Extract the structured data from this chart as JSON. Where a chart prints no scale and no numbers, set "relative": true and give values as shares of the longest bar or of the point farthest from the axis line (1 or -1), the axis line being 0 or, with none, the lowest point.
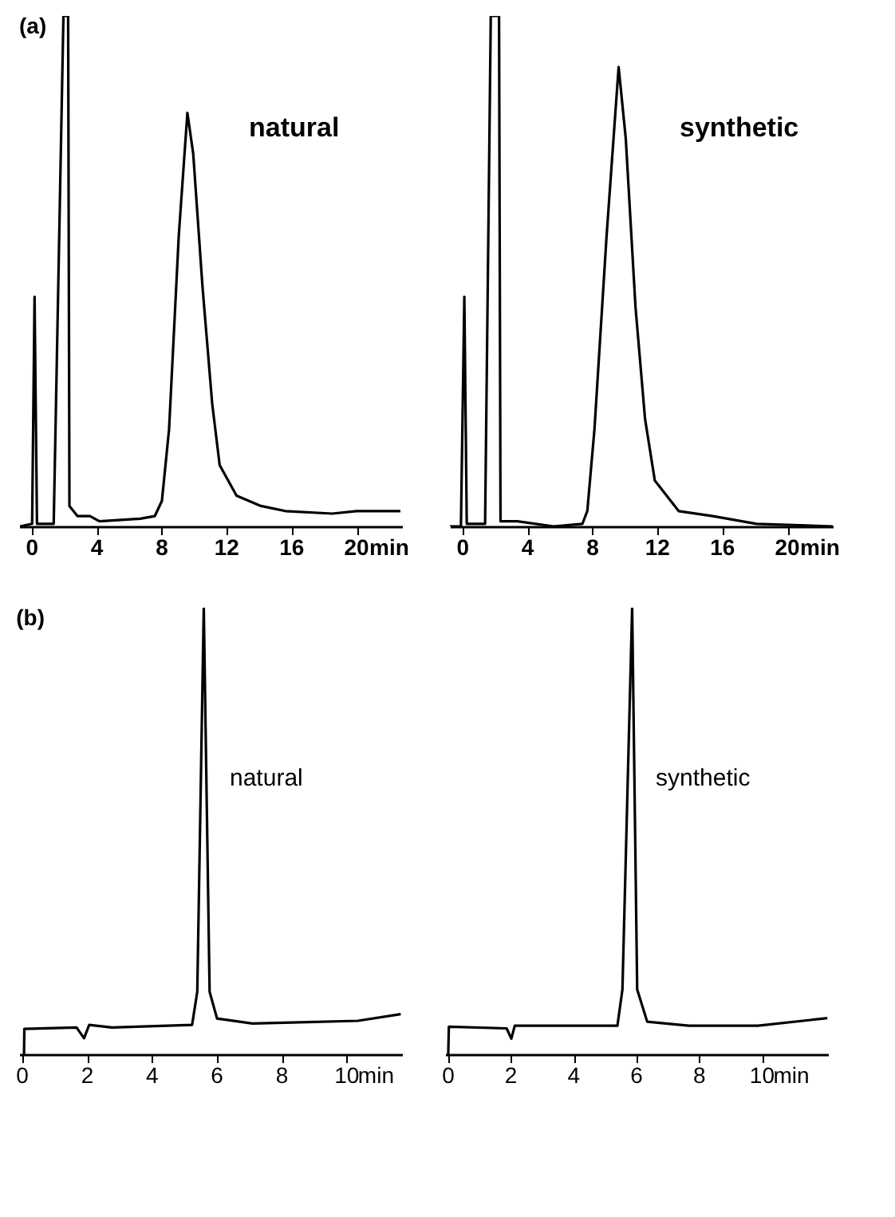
{
  "chart_data": [
    {
      "type": "line",
      "title": "(a)",
      "relative": true,
      "tick_labels": "x",
      "xlim": [
        -0.8,
        22.8
      ],
      "xticks": [
        0,
        4,
        8,
        12,
        16,
        20
      ],
      "xlabel": "min",
      "annotations": [
        "natural"
      ],
      "x": [
        -0.74,
        0,
        0.15,
        0.3,
        1.33,
        1.93,
        2.22,
        2.3,
        2.8,
        3.56,
        4.15,
        6.67,
        7.56,
        8.0,
        8.44,
        9.04,
        9.57,
        9.93,
        10.5,
        11.1,
        11.56,
        12.6,
        14.1,
        15.6,
        18.5,
        20.0,
        22.7
      ],
      "series": [
        {
          "color": "#000000",
          "values": [
            0,
            0.005,
            0.45,
            0.005,
            0.005,
            1.0,
            1.0,
            0.04,
            0.02,
            0.02,
            0.01,
            0.015,
            0.02,
            0.05,
            0.19,
            0.57,
            0.81,
            0.73,
            0.47,
            0.24,
            0.12,
            0.06,
            0.04,
            0.03,
            0.025,
            0.03,
            0.03
          ]
        }
      ]
    },
    {
      "type": "line",
      "relative": true,
      "tick_labels": "x",
      "xlim": [
        -0.8,
        22.8
      ],
      "xticks": [
        0,
        4,
        8,
        12,
        16,
        20
      ],
      "xlabel": "min",
      "annotations": [
        "synthetic"
      ],
      "x": [
        -0.8,
        -0.12,
        0.09,
        0.24,
        1.37,
        1.72,
        2.23,
        2.32,
        3.36,
        5.59,
        7.37,
        7.67,
        8.11,
        8.86,
        9.6,
        10.04,
        10.64,
        11.23,
        11.83,
        13.3,
        15.4,
        18.1,
        22.8
      ],
      "series": [
        {
          "color": "#000000",
          "values": [
            0,
            0,
            0.45,
            0.005,
            0.005,
            1.0,
            1.0,
            0.01,
            0.01,
            0,
            0.005,
            0.03,
            0.19,
            0.57,
            0.9,
            0.76,
            0.43,
            0.21,
            0.09,
            0.03,
            0.02,
            0.005,
            0
          ]
        }
      ]
    },
    {
      "type": "line",
      "title": "(b)",
      "relative": true,
      "tick_labels": "x",
      "xlim": [
        -0.1,
        11.7
      ],
      "xticks": [
        0,
        2,
        4,
        6,
        8,
        10
      ],
      "xlabel": "min",
      "annotations": [
        "natural"
      ],
      "x": [
        0.05,
        0.06,
        1.67,
        1.9,
        2.06,
        2.76,
        5.23,
        5.39,
        5.59,
        5.77,
        6.0,
        7.09,
        8.79,
        10.34,
        11.66
      ],
      "series": [
        {
          "color": "#000000",
          "values": [
            0,
            0.057,
            0.06,
            0.036,
            0.066,
            0.06,
            0.066,
            0.14,
            1.0,
            0.14,
            0.08,
            0.069,
            0.072,
            0.075,
            0.09
          ]
        }
      ]
    },
    {
      "type": "line",
      "relative": true,
      "tick_labels": "x",
      "xlim": [
        -0.1,
        12.1
      ],
      "xticks": [
        0,
        2,
        4,
        6,
        8,
        10
      ],
      "xlabel": "min",
      "annotations": [
        "synthetic"
      ],
      "x": [
        0,
        0.02,
        1.86,
        2.01,
        2.12,
        2.96,
        5.39,
        5.55,
        5.86,
        6.02,
        6.34,
        7.67,
        9.87,
        12.08
      ],
      "series": [
        {
          "color": "#000000",
          "values": [
            0,
            0.062,
            0.058,
            0.035,
            0.064,
            0.064,
            0.064,
            0.145,
            1.0,
            0.145,
            0.073,
            0.064,
            0.064,
            0.081
          ]
        }
      ]
    }
  ]
}
